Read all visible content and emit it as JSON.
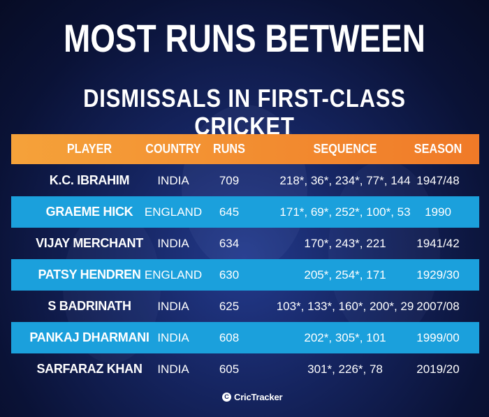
{
  "title_line1": "MOST RUNS BETWEEN",
  "title_line2": "DISMISSALS IN FIRST-CLASS CRICKET",
  "headers": {
    "player": "PLAYER",
    "country": "COUNTRY",
    "runs": "RUNS",
    "sequence": "SEQUENCE",
    "season": "SEASON"
  },
  "rows": [
    {
      "player": "K.C. IBRAHIM",
      "country": "INDIA",
      "runs": "709",
      "sequence": "218*, 36*, 234*, 77*, 144",
      "season": "1947/48"
    },
    {
      "player": "GRAEME HICK",
      "country": "ENGLAND",
      "runs": "645",
      "sequence": "171*, 69*, 252*, 100*, 53",
      "season": "1990"
    },
    {
      "player": "VIJAY MERCHANT",
      "country": "INDIA",
      "runs": "634",
      "sequence": "170*, 243*, 221",
      "season": "1941/42"
    },
    {
      "player": "PATSY HENDREN",
      "country": "ENGLAND",
      "runs": "630",
      "sequence": "205*, 254*, 171",
      "season": "1929/30"
    },
    {
      "player": "S BADRINATH",
      "country": "INDIA",
      "runs": "625",
      "sequence": "103*, 133*, 160*, 200*, 29",
      "season": "2007/08"
    },
    {
      "player": "PANKAJ DHARMANI",
      "country": "INDIA",
      "runs": "608",
      "sequence": "202*, 305*, 101",
      "season": "1999/00"
    },
    {
      "player": "SARFARAZ KHAN",
      "country": "INDIA",
      "runs": "605",
      "sequence": "301*, 226*, 78",
      "season": "2019/20"
    }
  ],
  "logo": {
    "text": "CricTracker",
    "icon": "crictracker-logo-icon"
  },
  "colors": {
    "background": "#0a1236",
    "header_orange": "#f28a2e",
    "row_stripe_blue": "#1ba0dc",
    "text": "#ffffff"
  }
}
